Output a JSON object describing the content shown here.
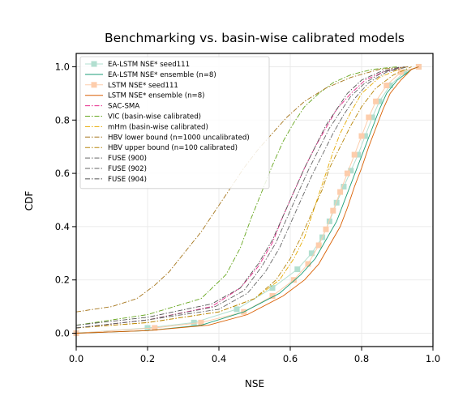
{
  "chart_data": {
    "type": "line",
    "title": "Benchmarking vs. basin-wise calibrated models",
    "xlabel": "NSE",
    "ylabel": "CDF",
    "xlim": [
      0.0,
      1.0
    ],
    "ylim": [
      -0.05,
      1.05
    ],
    "xticks": [
      0.0,
      0.2,
      0.4,
      0.6,
      0.8,
      1.0
    ],
    "xtick_labels": [
      "0.0",
      "0.2",
      "0.4",
      "0.6",
      "0.8",
      "1.0"
    ],
    "yticks": [
      0.0,
      0.2,
      0.4,
      0.6,
      0.8,
      1.0
    ],
    "ytick_labels": [
      "0.0",
      "0.2",
      "0.4",
      "0.6",
      "0.8",
      "1.0"
    ],
    "grid": true,
    "legend_position": "top-left",
    "series": [
      {
        "name": "EA-LSTM NSE* seed111",
        "color": "#b2dfd0",
        "style": "marker",
        "marker": "square",
        "x": [
          0.0,
          0.2,
          0.33,
          0.45,
          0.55,
          0.62,
          0.66,
          0.69,
          0.71,
          0.73,
          0.75,
          0.77,
          0.79,
          0.81,
          0.83,
          0.85,
          0.88,
          0.92,
          0.96
        ],
        "y": [
          0.0,
          0.02,
          0.04,
          0.09,
          0.17,
          0.24,
          0.3,
          0.36,
          0.42,
          0.49,
          0.55,
          0.61,
          0.67,
          0.74,
          0.81,
          0.87,
          0.93,
          0.98,
          1.0
        ]
      },
      {
        "name": "EA-LSTM NSE* ensemble (n=8)",
        "color": "#1b9e77",
        "style": "solid",
        "x": [
          0.0,
          0.2,
          0.35,
          0.47,
          0.57,
          0.63,
          0.67,
          0.7,
          0.73,
          0.75,
          0.77,
          0.79,
          0.81,
          0.83,
          0.85,
          0.87,
          0.9,
          0.94,
          0.96
        ],
        "y": [
          0.0,
          0.01,
          0.03,
          0.08,
          0.15,
          0.22,
          0.28,
          0.35,
          0.42,
          0.49,
          0.56,
          0.63,
          0.7,
          0.77,
          0.84,
          0.9,
          0.95,
          0.99,
          1.0
        ]
      },
      {
        "name": "LSTM NSE* seed111",
        "color": "#fdcdac",
        "style": "marker",
        "marker": "square",
        "x": [
          0.0,
          0.22,
          0.35,
          0.47,
          0.55,
          0.61,
          0.65,
          0.68,
          0.7,
          0.72,
          0.74,
          0.76,
          0.78,
          0.8,
          0.82,
          0.84,
          0.87,
          0.91,
          0.96
        ],
        "y": [
          0.0,
          0.02,
          0.04,
          0.08,
          0.14,
          0.2,
          0.26,
          0.33,
          0.39,
          0.46,
          0.53,
          0.6,
          0.67,
          0.74,
          0.81,
          0.87,
          0.93,
          0.98,
          1.0
        ]
      },
      {
        "name": "LSTM NSE* ensemble (n=8)",
        "color": "#d95f02",
        "style": "solid",
        "x": [
          0.0,
          0.2,
          0.37,
          0.48,
          0.58,
          0.64,
          0.68,
          0.71,
          0.74,
          0.76,
          0.78,
          0.8,
          0.82,
          0.84,
          0.86,
          0.88,
          0.91,
          0.94,
          0.96
        ],
        "y": [
          0.0,
          0.01,
          0.03,
          0.07,
          0.14,
          0.2,
          0.26,
          0.33,
          0.4,
          0.47,
          0.55,
          0.62,
          0.7,
          0.77,
          0.84,
          0.9,
          0.95,
          0.99,
          1.0
        ]
      },
      {
        "name": "SAC-SMA",
        "color": "#e7298a",
        "style": "dashdot",
        "x": [
          0.0,
          0.2,
          0.38,
          0.46,
          0.51,
          0.55,
          0.58,
          0.61,
          0.64,
          0.67,
          0.7,
          0.73,
          0.77,
          0.81,
          0.86,
          0.92
        ],
        "y": [
          0.02,
          0.05,
          0.1,
          0.17,
          0.25,
          0.34,
          0.44,
          0.53,
          0.62,
          0.7,
          0.77,
          0.84,
          0.9,
          0.95,
          0.98,
          1.0
        ]
      },
      {
        "name": "VIC (basin-wise calibrated)",
        "color": "#66a61e",
        "style": "dashdot",
        "x": [
          0.0,
          0.2,
          0.35,
          0.42,
          0.46,
          0.49,
          0.52,
          0.55,
          0.58,
          0.61,
          0.64,
          0.68,
          0.72,
          0.77,
          0.83,
          0.9
        ],
        "y": [
          0.03,
          0.07,
          0.13,
          0.22,
          0.32,
          0.43,
          0.53,
          0.63,
          0.72,
          0.79,
          0.85,
          0.9,
          0.94,
          0.97,
          0.99,
          1.0
        ]
      },
      {
        "name": "mHm (basin-wise calibrated)",
        "color": "#e6ab02",
        "style": "dashdot",
        "x": [
          0.0,
          0.2,
          0.4,
          0.5,
          0.57,
          0.61,
          0.64,
          0.66,
          0.68,
          0.7,
          0.72,
          0.74,
          0.77,
          0.8,
          0.85,
          0.92
        ],
        "y": [
          0.02,
          0.04,
          0.08,
          0.13,
          0.2,
          0.28,
          0.36,
          0.44,
          0.52,
          0.6,
          0.68,
          0.75,
          0.83,
          0.9,
          0.96,
          1.0
        ]
      },
      {
        "name": "HBV lower bound (n=1000 uncalibrated)",
        "color": "#a6761d",
        "style": "dashdot",
        "x": [
          0.0,
          0.1,
          0.17,
          0.22,
          0.26,
          0.29,
          0.32,
          0.35,
          0.38,
          0.41,
          0.44,
          0.47,
          0.51,
          0.55,
          0.59,
          0.64,
          0.7,
          0.77,
          0.85,
          0.93
        ],
        "y": [
          0.08,
          0.1,
          0.13,
          0.18,
          0.23,
          0.28,
          0.33,
          0.38,
          0.44,
          0.5,
          0.56,
          0.62,
          0.69,
          0.75,
          0.81,
          0.87,
          0.92,
          0.96,
          0.99,
          1.0
        ]
      },
      {
        "name": "HBV upper bound (n=100 calibrated)",
        "color": "#b8860b",
        "style": "dashdot",
        "x": [
          0.0,
          0.2,
          0.4,
          0.5,
          0.56,
          0.6,
          0.63,
          0.66,
          0.69,
          0.71,
          0.74,
          0.77,
          0.8,
          0.84,
          0.89,
          0.94
        ],
        "y": [
          0.02,
          0.04,
          0.08,
          0.13,
          0.2,
          0.28,
          0.36,
          0.45,
          0.54,
          0.62,
          0.7,
          0.78,
          0.85,
          0.92,
          0.97,
          1.0
        ]
      },
      {
        "name": "FUSE (900)",
        "color": "#666666",
        "style": "dashdot",
        "x": [
          0.0,
          0.2,
          0.4,
          0.48,
          0.53,
          0.57,
          0.6,
          0.63,
          0.66,
          0.69,
          0.72,
          0.75,
          0.78,
          0.82,
          0.87,
          0.93
        ],
        "y": [
          0.02,
          0.05,
          0.09,
          0.15,
          0.23,
          0.32,
          0.41,
          0.5,
          0.59,
          0.67,
          0.75,
          0.82,
          0.88,
          0.94,
          0.98,
          1.0
        ]
      },
      {
        "name": "FUSE (902)",
        "color": "#666666",
        "style": "dashdot",
        "x": [
          0.0,
          0.2,
          0.39,
          0.47,
          0.52,
          0.56,
          0.59,
          0.62,
          0.65,
          0.68,
          0.71,
          0.74,
          0.77,
          0.81,
          0.86,
          0.92
        ],
        "y": [
          0.02,
          0.05,
          0.1,
          0.16,
          0.25,
          0.34,
          0.43,
          0.52,
          0.61,
          0.69,
          0.77,
          0.83,
          0.89,
          0.94,
          0.98,
          1.0
        ]
      },
      {
        "name": "FUSE (904)",
        "color": "#555555",
        "style": "dashdot",
        "x": [
          0.0,
          0.2,
          0.38,
          0.46,
          0.51,
          0.55,
          0.58,
          0.61,
          0.64,
          0.67,
          0.7,
          0.73,
          0.76,
          0.8,
          0.85,
          0.91
        ],
        "y": [
          0.03,
          0.06,
          0.11,
          0.17,
          0.26,
          0.35,
          0.44,
          0.53,
          0.62,
          0.7,
          0.78,
          0.84,
          0.9,
          0.95,
          0.98,
          1.0
        ]
      }
    ]
  }
}
